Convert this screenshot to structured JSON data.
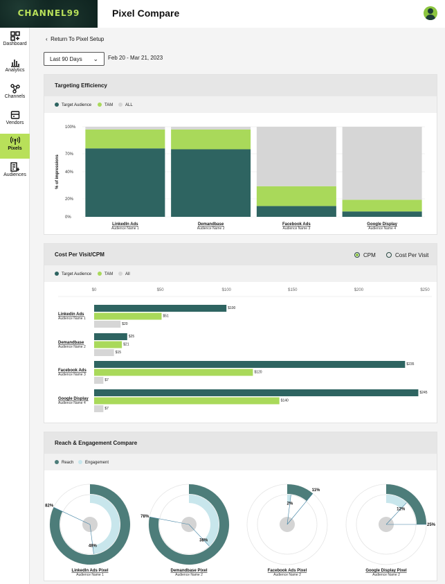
{
  "header": {
    "logo": "CHANNEL99",
    "title": "Pixel Compare"
  },
  "sidebar": {
    "items": [
      {
        "label": "Dashboard",
        "icon": "dashboard-icon"
      },
      {
        "label": "Analytics",
        "icon": "analytics-icon"
      },
      {
        "label": "Channels",
        "icon": "channels-icon"
      },
      {
        "label": "Vendors",
        "icon": "vendors-icon"
      },
      {
        "label": "Pixels",
        "icon": "pixels-icon",
        "active": true
      },
      {
        "label": "Audiences",
        "icon": "audiences-icon"
      }
    ]
  },
  "nav": {
    "back": "Return To Pixel Setup"
  },
  "filter": {
    "range": "Last 90 Days",
    "dates": "Feb 20 - Mar 21, 2023"
  },
  "colors": {
    "target": "#2e6461",
    "tam": "#a9d95a",
    "all": "#d6d6d6",
    "reach": "#4d7d7a",
    "engagement": "#c8e6ec"
  },
  "targeting": {
    "title": "Targeting Efficiency",
    "legend": [
      "Target Audience",
      "TAM",
      "ALL"
    ],
    "chart_data": {
      "type": "bar",
      "stacked": true,
      "ylabel": "% of impressions",
      "yticks": [
        "0%",
        "20%",
        "40%",
        "70%",
        "100%"
      ],
      "categories": [
        {
          "name": "LinkedIn Ads",
          "sub": "Audience Name 1"
        },
        {
          "name": "Demandbase",
          "sub": "Audience Name 2"
        },
        {
          "name": "Facebook Ads",
          "sub": "Audience Name 3"
        },
        {
          "name": "Google Display",
          "sub": "Audience Name 4"
        }
      ],
      "series": [
        {
          "name": "Target Audience",
          "values": [
            76,
            75,
            12,
            6
          ]
        },
        {
          "name": "TAM",
          "values": [
            21,
            22,
            22,
            13
          ]
        },
        {
          "name": "ALL",
          "values": [
            3,
            3,
            66,
            81
          ]
        }
      ]
    }
  },
  "cost": {
    "title": "Cost Per Visit/CPM",
    "toggle": [
      "CPM",
      "Cost Per Visit"
    ],
    "legend": [
      "Target Audience",
      "TAM",
      "All"
    ],
    "chart_data": {
      "type": "bar",
      "orientation": "horizontal",
      "xticks": [
        "$0",
        "$50",
        "$100",
        "$150",
        "$200",
        "$250"
      ],
      "xlim": [
        0,
        250
      ],
      "categories": [
        {
          "name": "Linkedin Ads",
          "sub": "Audience Name 1"
        },
        {
          "name": "Demandbase",
          "sub": "Audience Name 2"
        },
        {
          "name": "Facebook Ads",
          "sub": "Audience Name 3"
        },
        {
          "name": "Google Display",
          "sub": "Audience Name 4"
        }
      ],
      "series": [
        {
          "name": "Target Audience",
          "values": [
            100,
            25,
            235,
            245
          ],
          "labels": [
            "$100",
            "$25",
            "$235",
            "$245"
          ]
        },
        {
          "name": "TAM",
          "values": [
            51,
            21,
            120,
            140
          ],
          "labels": [
            "$51",
            "$21",
            "$120",
            "$140"
          ]
        },
        {
          "name": "All",
          "values": [
            20,
            15,
            7,
            7
          ],
          "labels": [
            "$20",
            "$15",
            "$7",
            "$7"
          ]
        }
      ]
    }
  },
  "reach": {
    "title": "Reach & Engagement Compare",
    "legend": [
      "Reach",
      "Engagement"
    ],
    "chart_data": {
      "type": "pie",
      "charts": [
        {
          "name": "LinkedIn Ads Pixel",
          "sub": "Audience Name 1",
          "reach": 82,
          "engagement": 48,
          "reach_label": "82%",
          "engagement_label": "48%"
        },
        {
          "name": "Demandbase Pixel",
          "sub": "Audience Name 2",
          "reach": 78,
          "engagement": 38,
          "reach_label": "78%",
          "engagement_label": "38%"
        },
        {
          "name": "Facebook Ads Pixel",
          "sub": "Audience Name 2",
          "reach": 11,
          "engagement": 2,
          "reach_label": "11%",
          "engagement_label": "2%"
        },
        {
          "name": "Google Display Pixel",
          "sub": "Audience Name 2",
          "reach": 25,
          "engagement": 12,
          "reach_label": "25%",
          "engagement_label": "12%"
        }
      ]
    }
  }
}
